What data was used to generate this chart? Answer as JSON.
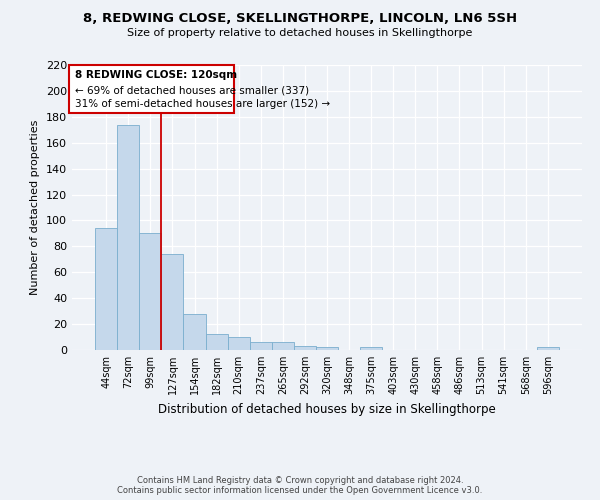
{
  "title": "8, REDWING CLOSE, SKELLINGTHORPE, LINCOLN, LN6 5SH",
  "subtitle": "Size of property relative to detached houses in Skellingthorpe",
  "xlabel": "Distribution of detached houses by size in Skellingthorpe",
  "ylabel": "Number of detached properties",
  "bar_color": "#c5d8eb",
  "bar_edge_color": "#7aaece",
  "categories": [
    "44sqm",
    "72sqm",
    "99sqm",
    "127sqm",
    "154sqm",
    "182sqm",
    "210sqm",
    "237sqm",
    "265sqm",
    "292sqm",
    "320sqm",
    "348sqm",
    "375sqm",
    "403sqm",
    "430sqm",
    "458sqm",
    "486sqm",
    "513sqm",
    "541sqm",
    "568sqm",
    "596sqm"
  ],
  "values": [
    94,
    174,
    90,
    74,
    28,
    12,
    10,
    6,
    6,
    3,
    2,
    0,
    2,
    0,
    0,
    0,
    0,
    0,
    0,
    0,
    2
  ],
  "vline_x": 2.5,
  "vline_color": "#cc0000",
  "ylim": [
    0,
    220
  ],
  "yticks": [
    0,
    20,
    40,
    60,
    80,
    100,
    120,
    140,
    160,
    180,
    200,
    220
  ],
  "annotation_title": "8 REDWING CLOSE: 120sqm",
  "annotation_line1": "← 69% of detached houses are smaller (337)",
  "annotation_line2": "31% of semi-detached houses are larger (152) →",
  "annotation_box_color": "#cc0000",
  "footer_line1": "Contains HM Land Registry data © Crown copyright and database right 2024.",
  "footer_line2": "Contains public sector information licensed under the Open Government Licence v3.0.",
  "background_color": "#eef2f7",
  "grid_color": "#ffffff"
}
